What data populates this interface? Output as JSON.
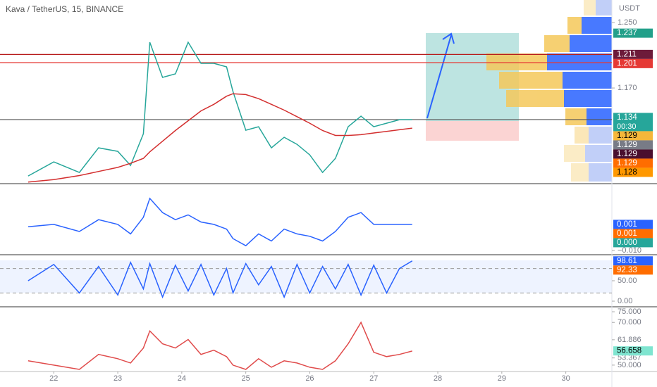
{
  "chart_data": [
    {
      "type": "line",
      "title": "Kava / TetherUS, 15, BINANCE",
      "axis_label": "USDT",
      "x": [
        21.6,
        22.0,
        22.4,
        22.7,
        23.0,
        23.2,
        23.4,
        23.5,
        23.7,
        23.9,
        24.1,
        24.3,
        24.5,
        24.7,
        24.8,
        25.0,
        25.2,
        25.4,
        25.6,
        25.8,
        26.0,
        26.2,
        26.4,
        26.6,
        26.8,
        27.0,
        27.2,
        27.4,
        27.6
      ],
      "series": [
        {
          "color": "#26a69a",
          "values": [
            1.0625,
            1.0797,
            1.0668,
            1.0969,
            1.0926,
            1.0754,
            1.1141,
            1.2259,
            1.1829,
            1.1872,
            1.2259,
            1.2001,
            1.2001,
            1.1958,
            1.1657,
            1.1184,
            1.1227,
            1.0969,
            1.1098,
            1.1012,
            1.0883,
            1.0668,
            1.084,
            1.1227,
            1.1356,
            1.1227,
            1.127,
            1.1313,
            1.1313
          ]
        },
        {
          "color": "#d32f2f",
          "values": [
            1.055,
            1.058,
            1.063,
            1.068,
            1.073,
            1.078,
            1.084,
            1.092,
            1.105,
            1.118,
            1.13,
            1.142,
            1.15,
            1.16,
            1.163,
            1.162,
            1.157,
            1.15,
            1.143,
            1.135,
            1.127,
            1.118,
            1.112,
            1.112,
            1.113,
            1.115,
            1.117,
            1.119,
            1.121
          ]
        }
      ],
      "xlim": [
        21.16,
        30.72
      ],
      "ylim": [
        1.054,
        1.2775
      ],
      "yticks": [
        {
          "value": 1.25,
          "label": "1.250"
        },
        {
          "value": 1.17,
          "label": "1.170"
        }
      ],
      "hlines": [
        {
          "value": 1.211,
          "color": "#b71c1c"
        },
        {
          "value": 1.201,
          "color": "#e53935"
        },
        {
          "value": 1.1314,
          "color": "#555555"
        }
      ],
      "price_labels": [
        {
          "value": 1.237,
          "color": "#22a08a",
          "text_color": "#ffffff"
        },
        {
          "value": 1.211,
          "color": "#6d1b3a",
          "text_color": "#ffffff"
        },
        {
          "value": 1.201,
          "color": "#e53935",
          "text_color": "#ffffff"
        },
        {
          "value": 1.134,
          "color": "#26a69a",
          "text_color": "#ffffff",
          "countdown": "00:30"
        },
        {
          "value": 1.129,
          "color": "#f5b73a",
          "text_color": "#000000"
        },
        {
          "value": 1.129,
          "color": "#787b86",
          "text_color": "#ffffff"
        },
        {
          "value": 1.129,
          "color": "#4a0f2e",
          "text_color": "#ffffff"
        },
        {
          "value": 1.129,
          "color": "#ff6d00",
          "text_color": "#ffffff"
        },
        {
          "value": 1.128,
          "color": "#ff9800",
          "text_color": "#000000"
        }
      ]
    },
    {
      "type": "line",
      "x": [
        21.6,
        22.0,
        22.4,
        22.7,
        23.0,
        23.2,
        23.4,
        23.5,
        23.7,
        23.9,
        24.1,
        24.3,
        24.5,
        24.7,
        24.8,
        25.0,
        25.2,
        25.4,
        25.6,
        25.8,
        26.0,
        26.2,
        26.4,
        26.6,
        26.8,
        27.0,
        27.2,
        27.4,
        27.6
      ],
      "series": [
        {
          "color": "#2962ff",
          "values": [
            0,
            0.001,
            -0.002,
            0.003,
            0.001,
            -0.003,
            0.004,
            0.012,
            0.006,
            0.003,
            0.005,
            0.002,
            0.001,
            -0.001,
            -0.005,
            -0.008,
            -0.003,
            -0.006,
            -0.001,
            -0.003,
            -0.004,
            -0.006,
            -0.002,
            0.004,
            0.006,
            0.001,
            0.001,
            0.001,
            0.001
          ]
        }
      ],
      "xlim": [
        21.16,
        30.72
      ],
      "ylim": [
        -0.0112,
        0.0176
      ],
      "yticks": [
        {
          "value": -0.01,
          "label": "−0.010"
        }
      ],
      "price_labels": [
        {
          "value": 0.001,
          "color": "#2962ff",
          "text_color": "#ffffff"
        },
        {
          "value": 0.001,
          "color": "#ff6d00",
          "text_color": "#ffffff"
        },
        {
          "value": 0,
          "label": "0.000",
          "color": "#26a69a",
          "text_color": "#ffffff"
        }
      ]
    },
    {
      "type": "line",
      "x": [
        21.6,
        22.0,
        22.4,
        22.7,
        23.0,
        23.2,
        23.4,
        23.5,
        23.7,
        23.9,
        24.1,
        24.3,
        24.5,
        24.7,
        24.8,
        25.0,
        25.2,
        25.4,
        25.6,
        25.8,
        26.0,
        26.2,
        26.4,
        26.6,
        26.8,
        27.0,
        27.2,
        27.4,
        27.6
      ],
      "series": [
        {
          "color": "#2962ff",
          "values": [
            50,
            90,
            20,
            85,
            15,
            95,
            30,
            92,
            10,
            88,
            25,
            90,
            15,
            80,
            20,
            92,
            40,
            85,
            10,
            90,
            20,
            85,
            30,
            90,
            15,
            88,
            20,
            80,
            98.6
          ]
        }
      ],
      "xlim": [
        21.16,
        30.72
      ],
      "ylim": [
        -10.3,
        112
      ],
      "yticks": [
        {
          "value": 50,
          "label": "50.00"
        },
        {
          "value": 0,
          "label": "0.00"
        }
      ],
      "levels": [
        20,
        80
      ],
      "price_labels": [
        {
          "value": 98.61,
          "color": "#2962ff",
          "text_color": "#ffffff"
        },
        {
          "value": 92.33,
          "color": "#ff6d00",
          "text_color": "#ffffff"
        }
      ]
    },
    {
      "type": "line",
      "x": [
        21.6,
        22.0,
        22.4,
        22.7,
        23.0,
        23.2,
        23.4,
        23.5,
        23.7,
        23.9,
        24.1,
        24.3,
        24.5,
        24.7,
        24.8,
        25.0,
        25.2,
        25.4,
        25.6,
        25.8,
        26.0,
        26.2,
        26.4,
        26.6,
        26.8,
        27.0,
        27.2,
        27.4,
        27.6
      ],
      "series": [
        {
          "color": "#e04b4b",
          "values": [
            52,
            50,
            48,
            55,
            53,
            51,
            58,
            66,
            60,
            58,
            62,
            55,
            57,
            54,
            50,
            48,
            53,
            49,
            52,
            51,
            49,
            48,
            52,
            60,
            70,
            56,
            54,
            55,
            56.6
          ]
        }
      ],
      "xlim": [
        21.16,
        30.72
      ],
      "ylim": [
        47,
        77
      ],
      "yticks": [
        {
          "value": 75,
          "label": "75.000"
        },
        {
          "value": 70,
          "label": "70.000"
        },
        {
          "value": 61.886,
          "label": "61.886"
        },
        {
          "value": 53.367,
          "label": "53.367"
        },
        {
          "value": 50,
          "label": "50.000"
        }
      ],
      "price_labels": [
        {
          "value": 56.658,
          "color": "#7fe5d0",
          "text_color": "#000000"
        }
      ],
      "xticks": [
        22,
        23,
        24,
        25,
        26,
        27,
        28,
        29,
        30
      ]
    }
  ]
}
